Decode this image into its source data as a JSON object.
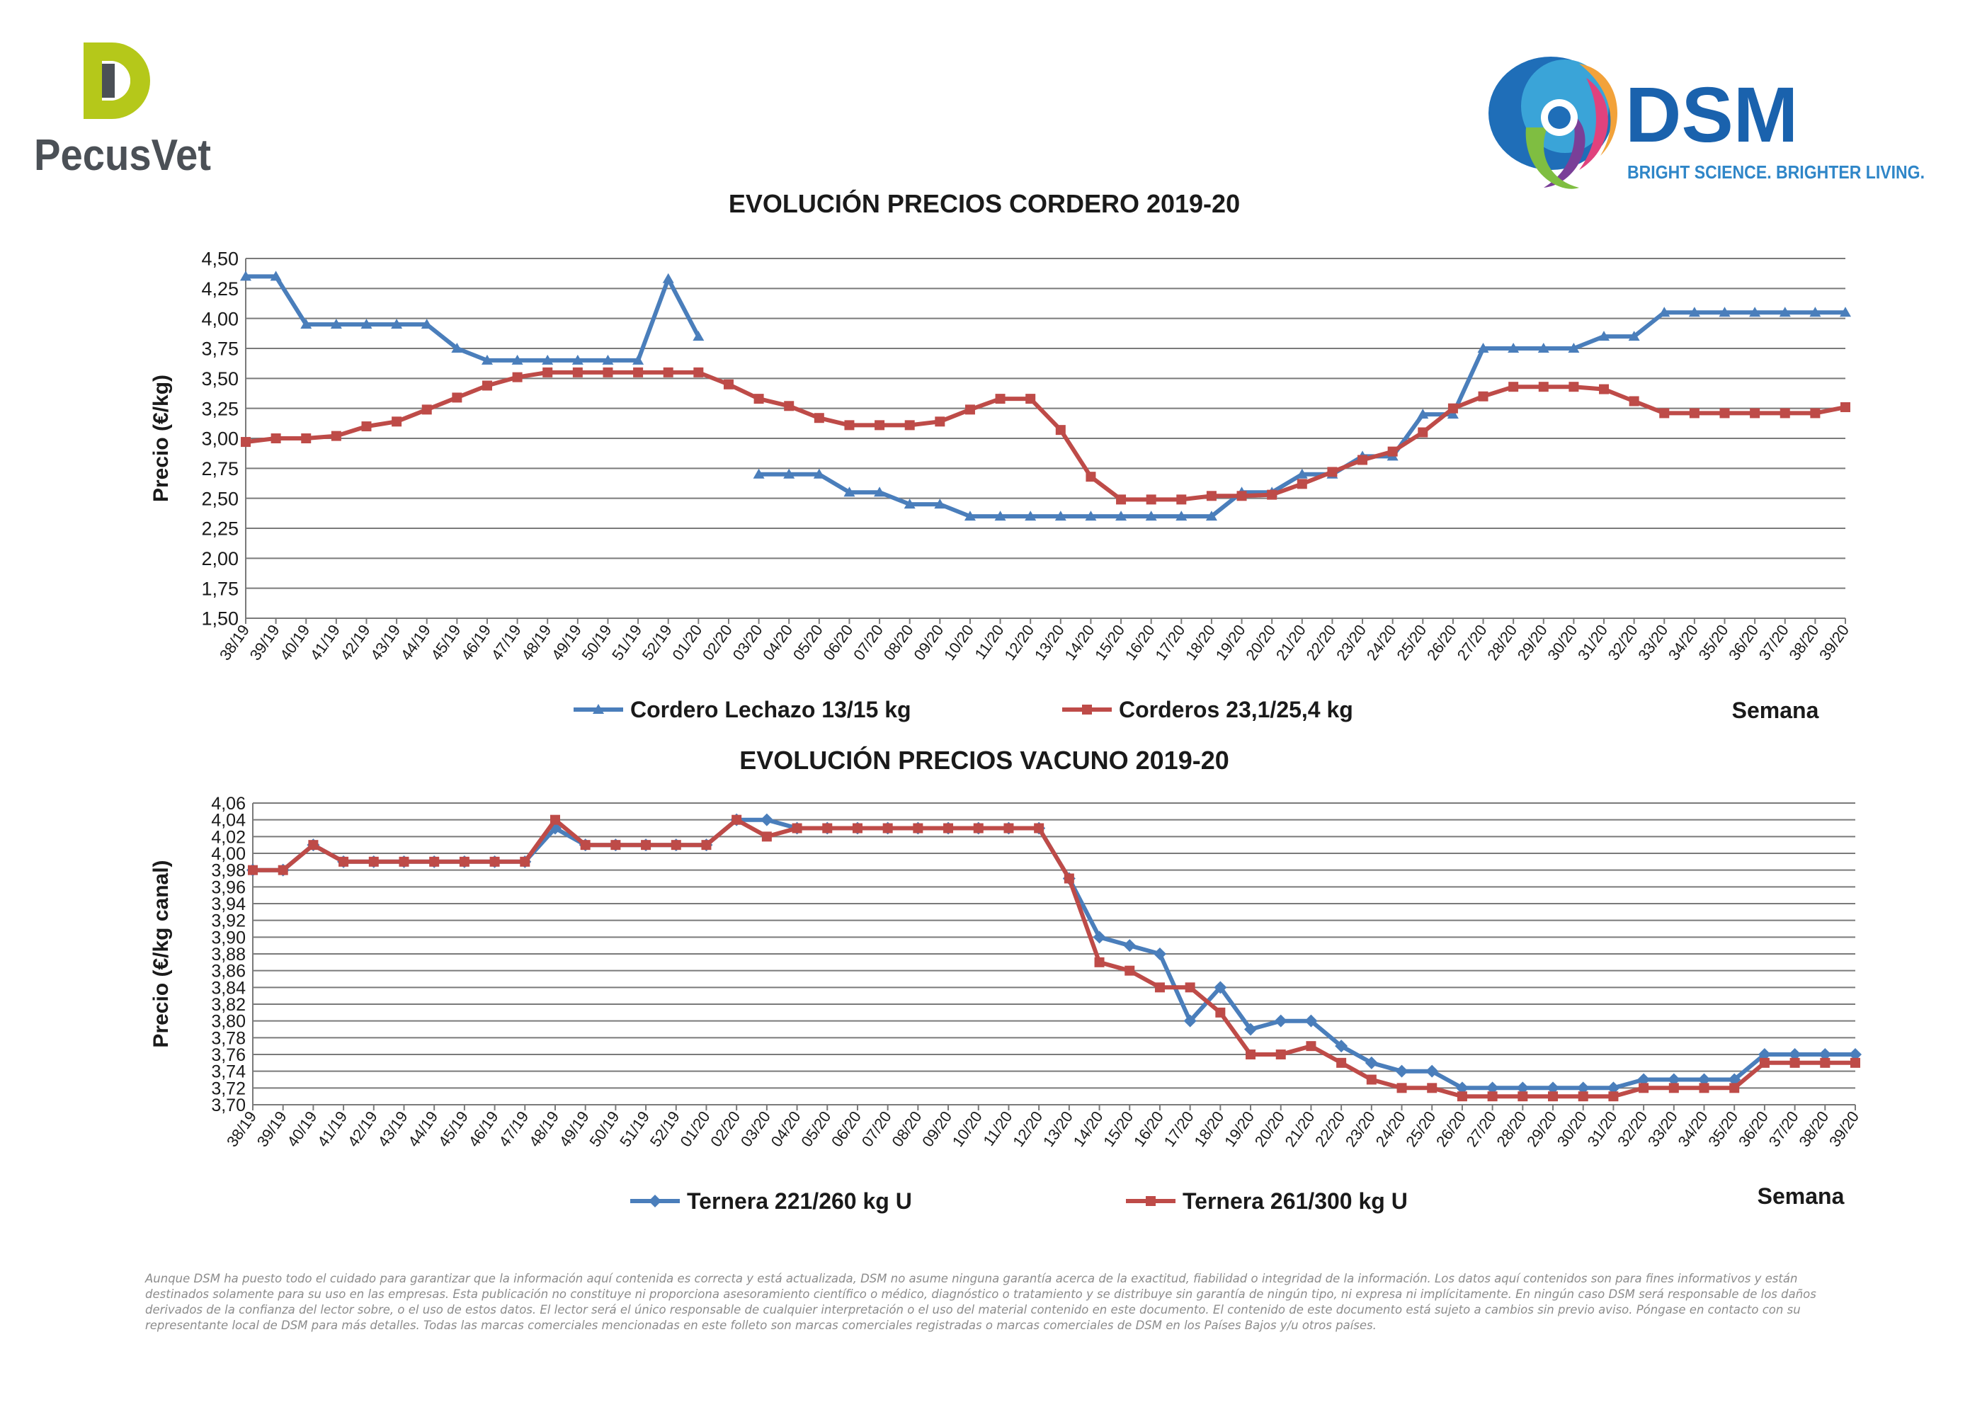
{
  "brand": {
    "pecus_name": "PecusVet",
    "dsm_name": "DSM",
    "dsm_tagline": "BRIGHT SCIENCE. BRIGHTER LIVING.",
    "colors": {
      "pecus_green": "#b5c81a",
      "pecus_text": "#4b5056",
      "dsm_blue": "#1a62ad"
    }
  },
  "disclaimer": "Aunque DSM ha puesto todo el cuidado para garantizar que la información aquí contenida es correcta y está actualizada, DSM no asume ninguna garantía acerca de la exactitud, fiabilidad o integridad de la información. Los datos aquí contenidos son para fines informativos y están destinados solamente para su uso en las empresas. Esta publicación no constituye ni proporciona asesoramiento científico o médico, diagnóstico o tratamiento y se distribuye sin garantía de ningún tipo, ni expresa ni implícitamente. En ningún caso DSM será responsable de los daños derivados de la confianza del lector sobre, o el uso de estos datos. El lector será el único responsable de cualquier interpretación o el uso del material contenido en este documento. El contenido de este documento está sujeto a cambios sin previo aviso. Póngase en contacto con su representante local de DSM para más detalles. Todas las marcas comerciales mencionadas en este folleto son marcas comerciales registradas o marcas comerciales de DSM en los Países Bajos y/u otros países.",
  "chart_data": [
    {
      "type": "line",
      "title": "EVOLUCIÓN PRECIOS CORDERO 2019-20",
      "xlabel": "Semana",
      "ylabel": "Precio (€/kg)",
      "ylim": [
        1.5,
        4.5
      ],
      "yticks": [
        "1,50",
        "1,75",
        "2,00",
        "2,25",
        "2,50",
        "2,75",
        "3,00",
        "3,25",
        "3,50",
        "3,75",
        "4,00",
        "4,25",
        "4,50"
      ],
      "grid": true,
      "legend_position": "bottom",
      "categories": [
        "38/19",
        "39/19",
        "40/19",
        "41/19",
        "42/19",
        "43/19",
        "44/19",
        "45/19",
        "46/19",
        "47/19",
        "48/19",
        "49/19",
        "50/19",
        "51/19",
        "52/19",
        "01/20",
        "02/20",
        "03/20",
        "04/20",
        "05/20",
        "06/20",
        "07/20",
        "08/20",
        "09/20",
        "10/20",
        "11/20",
        "12/20",
        "13/20",
        "14/20",
        "15/20",
        "16/20",
        "17/20",
        "18/20",
        "19/20",
        "20/20",
        "21/20",
        "22/20",
        "23/20",
        "24/20",
        "25/20",
        "26/20",
        "27/20",
        "28/20",
        "29/20",
        "30/20",
        "31/20",
        "32/20",
        "33/20",
        "34/20",
        "35/20",
        "36/20",
        "37/20",
        "38/20",
        "39/20"
      ],
      "series": [
        {
          "name": "Cordero Lechazo 13/15 kg",
          "color": "#4a7ebb",
          "marker": "triangle",
          "values": [
            4.35,
            4.35,
            3.95,
            3.95,
            3.95,
            3.95,
            3.95,
            3.75,
            3.65,
            3.65,
            3.65,
            3.65,
            3.65,
            3.65,
            4.33,
            3.85,
            null,
            2.7,
            2.7,
            2.7,
            2.55,
            2.55,
            2.45,
            2.45,
            2.35,
            2.35,
            2.35,
            2.35,
            2.35,
            2.35,
            2.35,
            2.35,
            2.35,
            2.55,
            2.55,
            2.7,
            2.7,
            2.85,
            2.85,
            3.2,
            3.2,
            3.75,
            3.75,
            3.75,
            3.75,
            3.85,
            3.85,
            4.05,
            4.05,
            4.05,
            4.05,
            4.05,
            4.05,
            4.05
          ]
        },
        {
          "name": "Corderos 23,1/25,4 kg",
          "color": "#be4b48",
          "marker": "square",
          "values": [
            2.97,
            3.0,
            3.0,
            3.02,
            3.1,
            3.14,
            3.24,
            3.34,
            3.44,
            3.51,
            3.55,
            3.55,
            3.55,
            3.55,
            3.55,
            3.55,
            3.45,
            3.33,
            3.27,
            3.17,
            3.11,
            3.11,
            3.11,
            3.14,
            3.24,
            3.33,
            3.33,
            3.07,
            2.68,
            2.49,
            2.49,
            2.49,
            2.52,
            2.52,
            2.53,
            2.62,
            2.72,
            2.82,
            2.89,
            3.05,
            3.25,
            3.35,
            3.43,
            3.43,
            3.43,
            3.41,
            3.31,
            3.21,
            3.21,
            3.21,
            3.21,
            3.21,
            3.21,
            3.26
          ]
        }
      ]
    },
    {
      "type": "line",
      "title": "EVOLUCIÓN PRECIOS VACUNO 2019-20",
      "xlabel": "Semana",
      "ylabel": "Precio (€/kg canal)",
      "ylim": [
        3.7,
        4.06
      ],
      "yticks": [
        "3,70",
        "3,72",
        "3,74",
        "3,76",
        "3,78",
        "3,80",
        "3,82",
        "3,84",
        "3,86",
        "3,88",
        "3,90",
        "3,92",
        "3,94",
        "3,96",
        "3,98",
        "4,00",
        "4,02",
        "4,04",
        "4,06"
      ],
      "grid": true,
      "legend_position": "bottom",
      "categories": [
        "38/19",
        "39/19",
        "40/19",
        "41/19",
        "42/19",
        "43/19",
        "44/19",
        "45/19",
        "46/19",
        "47/19",
        "48/19",
        "49/19",
        "50/19",
        "51/19",
        "52/19",
        "01/20",
        "02/20",
        "03/20",
        "04/20",
        "05/20",
        "06/20",
        "07/20",
        "08/20",
        "09/20",
        "10/20",
        "11/20",
        "12/20",
        "13/20",
        "14/20",
        "15/20",
        "16/20",
        "17/20",
        "18/20",
        "19/20",
        "20/20",
        "21/20",
        "22/20",
        "23/20",
        "24/20",
        "25/20",
        "26/20",
        "27/20",
        "28/20",
        "29/20",
        "30/20",
        "31/20",
        "32/20",
        "33/20",
        "34/20",
        "35/20",
        "36/20",
        "37/20",
        "38/20",
        "39/20"
      ],
      "series": [
        {
          "name": "Ternera 221/260 kg U",
          "color": "#4a7ebb",
          "marker": "diamond",
          "values": [
            3.98,
            3.98,
            4.01,
            3.99,
            3.99,
            3.99,
            3.99,
            3.99,
            3.99,
            3.99,
            4.03,
            4.01,
            4.01,
            4.01,
            4.01,
            4.01,
            4.04,
            4.04,
            4.03,
            4.03,
            4.03,
            4.03,
            4.03,
            4.03,
            4.03,
            4.03,
            4.03,
            3.97,
            3.9,
            3.89,
            3.88,
            3.8,
            3.84,
            3.79,
            3.8,
            3.8,
            3.77,
            3.75,
            3.74,
            3.74,
            3.72,
            3.72,
            3.72,
            3.72,
            3.72,
            3.72,
            3.73,
            3.73,
            3.73,
            3.73,
            3.76,
            3.76,
            3.76,
            3.76
          ]
        },
        {
          "name": "Ternera 261/300 kg U",
          "color": "#be4b48",
          "marker": "square",
          "values": [
            3.98,
            3.98,
            4.01,
            3.99,
            3.99,
            3.99,
            3.99,
            3.99,
            3.99,
            3.99,
            4.04,
            4.01,
            4.01,
            4.01,
            4.01,
            4.01,
            4.04,
            4.02,
            4.03,
            4.03,
            4.03,
            4.03,
            4.03,
            4.03,
            4.03,
            4.03,
            4.03,
            3.97,
            3.87,
            3.86,
            3.84,
            3.84,
            3.81,
            3.76,
            3.76,
            3.77,
            3.75,
            3.73,
            3.72,
            3.72,
            3.71,
            3.71,
            3.71,
            3.71,
            3.71,
            3.71,
            3.72,
            3.72,
            3.72,
            3.72,
            3.75,
            3.75,
            3.75,
            3.75
          ]
        }
      ]
    }
  ]
}
